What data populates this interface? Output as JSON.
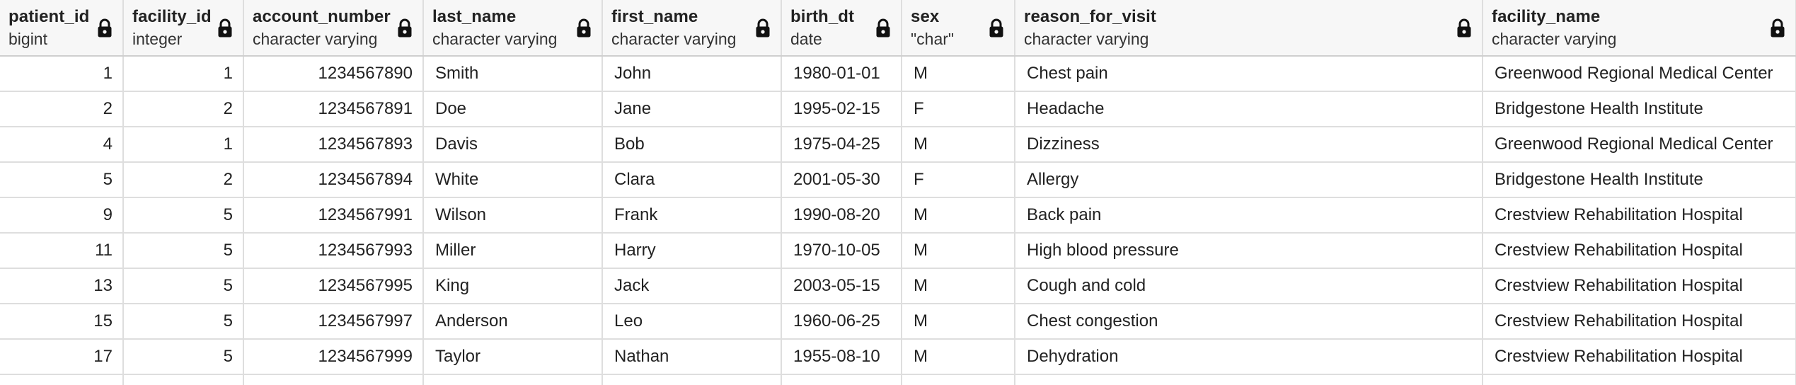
{
  "columns": [
    {
      "name": "patient_id",
      "type": "bigint",
      "align": "num"
    },
    {
      "name": "facility_id",
      "type": "integer",
      "align": "num"
    },
    {
      "name": "account_number",
      "type": "character varying",
      "align": "num"
    },
    {
      "name": "last_name",
      "type": "character varying",
      "align": "txt"
    },
    {
      "name": "first_name",
      "type": "character varying",
      "align": "txt"
    },
    {
      "name": "birth_dt",
      "type": "date",
      "align": "txt"
    },
    {
      "name": "sex",
      "type": "\"char\"",
      "align": "txt"
    },
    {
      "name": "reason_for_visit",
      "type": "character varying",
      "align": "txt"
    },
    {
      "name": "facility_name",
      "type": "character varying",
      "align": "txt"
    }
  ],
  "rows": [
    [
      "1",
      "1",
      "1234567890",
      "Smith",
      "John",
      "1980-01-01",
      "M",
      "Chest pain",
      "Greenwood Regional Medical Center"
    ],
    [
      "2",
      "2",
      "1234567891",
      "Doe",
      "Jane",
      "1995-02-15",
      "F",
      "Headache",
      "Bridgestone Health Institute"
    ],
    [
      "4",
      "1",
      "1234567893",
      "Davis",
      "Bob",
      "1975-04-25",
      "M",
      "Dizziness",
      "Greenwood Regional Medical Center"
    ],
    [
      "5",
      "2",
      "1234567894",
      "White",
      "Clara",
      "2001-05-30",
      "F",
      "Allergy",
      "Bridgestone Health Institute"
    ],
    [
      "9",
      "5",
      "1234567991",
      "Wilson",
      "Frank",
      "1990-08-20",
      "M",
      "Back pain",
      "Crestview Rehabilitation Hospital"
    ],
    [
      "11",
      "5",
      "1234567993",
      "Miller",
      "Harry",
      "1970-10-05",
      "M",
      "High blood pressure",
      "Crestview Rehabilitation Hospital"
    ],
    [
      "13",
      "5",
      "1234567995",
      "King",
      "Jack",
      "2003-05-15",
      "M",
      "Cough and cold",
      "Crestview Rehabilitation Hospital"
    ],
    [
      "15",
      "5",
      "1234567997",
      "Anderson",
      "Leo",
      "1960-06-25",
      "M",
      "Chest congestion",
      "Crestview Rehabilitation Hospital"
    ],
    [
      "17",
      "5",
      "1234567999",
      "Taylor",
      "Nathan",
      "1955-08-10",
      "M",
      "Dehydration",
      "Crestview Rehabilitation Hospital"
    ]
  ],
  "colors": {
    "border": "#dedede",
    "header_bg": "#f7f7f7",
    "text": "#222222"
  },
  "icons": {
    "lock": "lock-icon"
  }
}
